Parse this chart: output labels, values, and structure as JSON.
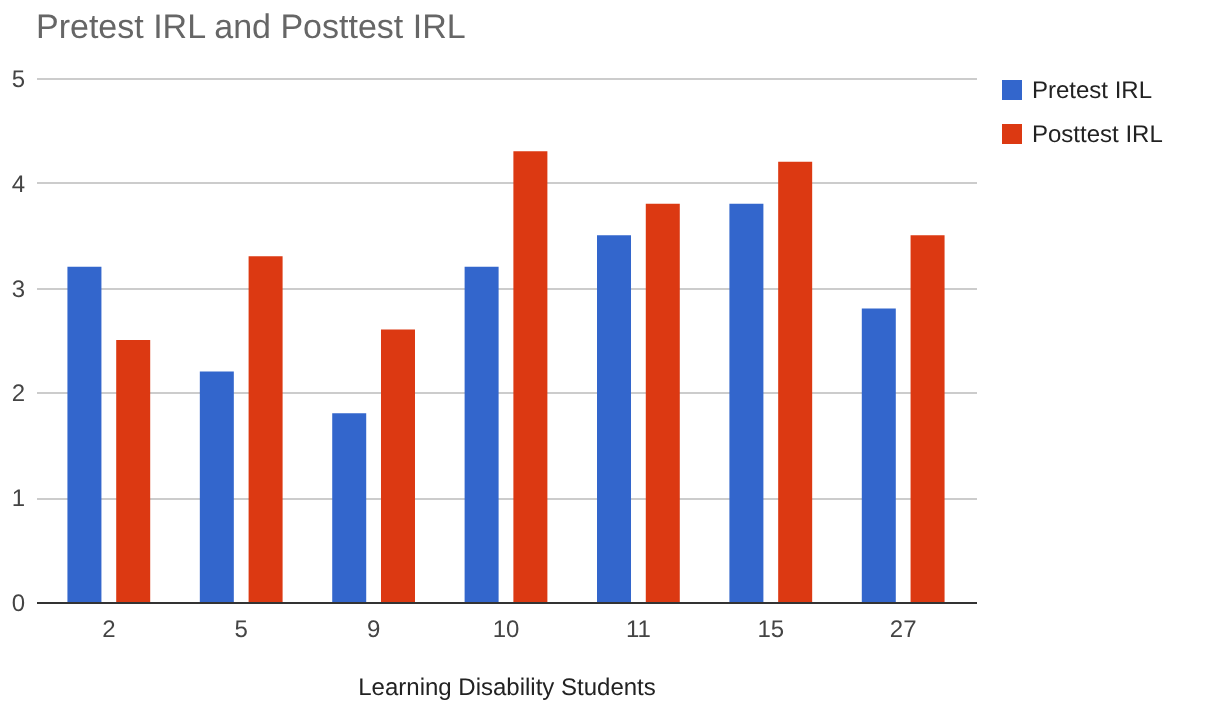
{
  "chart_data": {
    "type": "bar",
    "title": "Pretest IRL and Posttest IRL",
    "xlabel": "Learning Disability Students",
    "categories": [
      "2",
      "5",
      "9",
      "10",
      "11",
      "15",
      "27"
    ],
    "series": [
      {
        "name": "Pretest IRL",
        "color": "#3366cc",
        "values": [
          3.2,
          2.2,
          1.8,
          3.2,
          3.5,
          3.8,
          2.8
        ]
      },
      {
        "name": "Posttest IRL",
        "color": "#dc3912",
        "values": [
          2.5,
          3.3,
          2.6,
          4.3,
          3.8,
          4.2,
          3.5
        ]
      }
    ],
    "ylim": [
      0,
      5
    ],
    "yticks": [
      0,
      1,
      2,
      3,
      4,
      5
    ],
    "grid": "y",
    "legend": "top right"
  }
}
